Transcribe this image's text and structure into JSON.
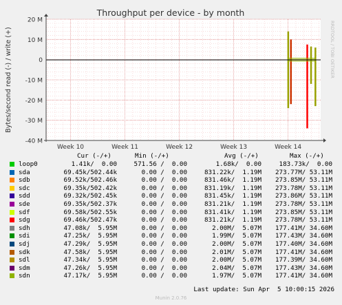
{
  "chart_data": {
    "type": "line",
    "title": "Throughput per device - by month",
    "ylabel": "Bytes/second read (-) / write (+)",
    "ylim": [
      -40000000,
      20000000
    ],
    "yticks": [
      "20 M",
      "10 M",
      "0",
      "-10 M",
      "-20 M",
      "-30 M",
      "-40 M"
    ],
    "ytick_values": [
      20000000,
      10000000,
      0,
      -10000000,
      -20000000,
      -30000000,
      -40000000
    ],
    "xticks": [
      "Week 10",
      "Week 11",
      "Week 12",
      "Week 13",
      "Week 14"
    ],
    "x_range_weeks": [
      9.55,
      14.6
    ],
    "grid": true,
    "zero_line_color": "#000000",
    "spikes": [
      {
        "x": 14.0,
        "min": -24000000,
        "max": 14000000,
        "color": "#99a000"
      },
      {
        "x": 14.05,
        "min": -22000000,
        "max": 10000000,
        "color": "#cc3300"
      },
      {
        "x": 14.35,
        "min": -34000000,
        "max": 7500000,
        "color": "#ff0000"
      },
      {
        "x": 14.42,
        "min": -12000000,
        "max": 6500000,
        "color": "#99a000"
      },
      {
        "x": 14.5,
        "min": -23000000,
        "max": 6000000,
        "color": "#99a000"
      }
    ],
    "series": [
      {
        "name": "loop0"
      },
      {
        "name": "sda"
      },
      {
        "name": "sdb"
      },
      {
        "name": "sdc"
      },
      {
        "name": "sdd"
      },
      {
        "name": "sde"
      },
      {
        "name": "sdf"
      },
      {
        "name": "sdg"
      },
      {
        "name": "sdh"
      },
      {
        "name": "sdi"
      },
      {
        "name": "sdj"
      },
      {
        "name": "sdk"
      },
      {
        "name": "sdl"
      },
      {
        "name": "sdm"
      },
      {
        "name": "sdn"
      }
    ]
  },
  "side_label": "RRDTOOL / TOBI OETIKER",
  "legend_headers": {
    "cur": "Cur (-/+)",
    "min": "Min (-/+)",
    "avg": "Avg (-/+)",
    "max": "Max (-/+)"
  },
  "legend_rows": [
    {
      "name": "loop0",
      "color": "#00cc00",
      "cur": "1.41k/  0.00",
      "min": "571.56 /  0.00",
      "avg": "1.68k/  0.00",
      "max": "183.73k/  0.00"
    },
    {
      "name": "sda",
      "color": "#0066b3",
      "cur": "69.45k/502.44k",
      "min": "0.00 /  0.00",
      "avg": "831.22k/  1.19M",
      "max": "273.77M/ 53.11M"
    },
    {
      "name": "sdb",
      "color": "#ff8000",
      "cur": "69.52k/502.46k",
      "min": "0.00 /  0.00",
      "avg": "831.46k/  1.19M",
      "max": "273.85M/ 53.11M"
    },
    {
      "name": "sdc",
      "color": "#ffcc00",
      "cur": "69.35k/502.42k",
      "min": "0.00 /  0.00",
      "avg": "831.19k/  1.19M",
      "max": "273.78M/ 53.11M"
    },
    {
      "name": "sdd",
      "color": "#330099",
      "cur": "69.32k/502.45k",
      "min": "0.00 /  0.00",
      "avg": "831.45k/  1.19M",
      "max": "273.86M/ 53.11M"
    },
    {
      "name": "sde",
      "color": "#990099",
      "cur": "69.35k/502.37k",
      "min": "0.00 /  0.00",
      "avg": "831.21k/  1.19M",
      "max": "273.78M/ 53.11M"
    },
    {
      "name": "sdf",
      "color": "#ccff00",
      "cur": "69.58k/502.55k",
      "min": "0.00 /  0.00",
      "avg": "831.41k/  1.19M",
      "max": "273.85M/ 53.11M"
    },
    {
      "name": "sdg",
      "color": "#ff0000",
      "cur": "69.46k/502.47k",
      "min": "0.00 /  0.00",
      "avg": "831.21k/  1.19M",
      "max": "273.78M/ 53.11M"
    },
    {
      "name": "sdh",
      "color": "#808080",
      "cur": "47.08k/  5.95M",
      "min": "0.00 /  0.00",
      "avg": "2.00M/  5.07M",
      "max": "177.41M/ 34.60M"
    },
    {
      "name": "sdi",
      "color": "#008f00",
      "cur": "47.25k/  5.95M",
      "min": "0.00 /  0.00",
      "avg": "1.99M/  5.07M",
      "max": "177.43M/ 34.60M"
    },
    {
      "name": "sdj",
      "color": "#00487d",
      "cur": "47.29k/  5.95M",
      "min": "0.00 /  0.00",
      "avg": "2.00M/  5.07M",
      "max": "177.40M/ 34.60M"
    },
    {
      "name": "sdk",
      "color": "#b35a00",
      "cur": "47.58k/  5.95M",
      "min": "0.00 /  0.00",
      "avg": "2.01M/  5.07M",
      "max": "177.41M/ 34.60M"
    },
    {
      "name": "sdl",
      "color": "#b38f00",
      "cur": "47.34k/  5.95M",
      "min": "0.00 /  0.00",
      "avg": "2.00M/  5.07M",
      "max": "177.39M/ 34.60M"
    },
    {
      "name": "sdm",
      "color": "#6b006b",
      "cur": "47.26k/  5.95M",
      "min": "0.00 /  0.00",
      "avg": "2.04M/  5.07M",
      "max": "177.43M/ 34.60M"
    },
    {
      "name": "sdn",
      "color": "#8fb300",
      "cur": "47.17k/  5.95M",
      "min": "0.00 /  0.00",
      "avg": "1.97M/  5.07M",
      "max": "177.41M/ 34.60M"
    }
  ],
  "last_update": "Last update: Sun Apr  5 10:00:15 2026",
  "footer": "Munin 2.0.76"
}
